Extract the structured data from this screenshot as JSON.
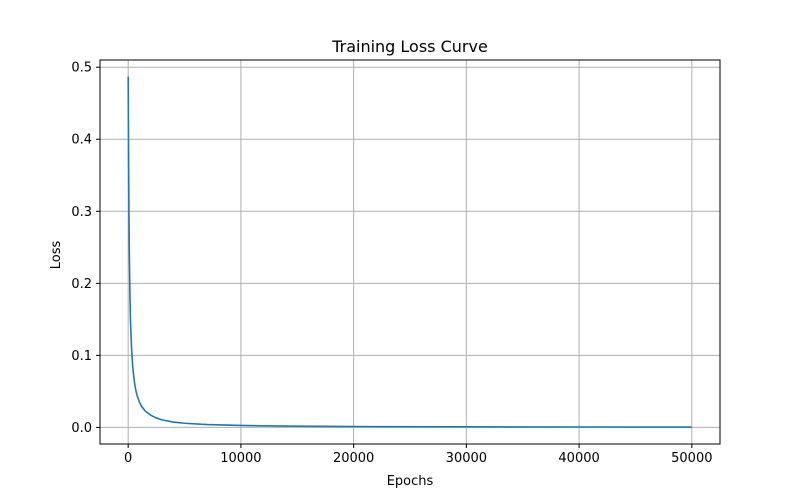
{
  "chart_data": {
    "type": "line",
    "title": "Training Loss Curve",
    "xlabel": "Epochs",
    "ylabel": "Loss",
    "xlim": [
      -2500,
      52500
    ],
    "ylim": [
      -0.023,
      0.51
    ],
    "grid": true,
    "legend": "none",
    "x_ticks": [
      0,
      10000,
      20000,
      30000,
      40000,
      50000
    ],
    "x_tick_labels": [
      "0",
      "10000",
      "20000",
      "30000",
      "40000",
      "50000"
    ],
    "y_ticks": [
      0.0,
      0.1,
      0.2,
      0.3,
      0.4,
      0.5
    ],
    "y_tick_labels": [
      "0.0",
      "0.1",
      "0.2",
      "0.3",
      "0.4",
      "0.5"
    ],
    "series": [
      {
        "color": "#1f77b4",
        "x": [
          0,
          50,
          100,
          150,
          200,
          300,
          400,
          500,
          600,
          700,
          800,
          1000,
          1200,
          1500,
          2000,
          2500,
          3000,
          4000,
          5000,
          7000,
          10000,
          15000,
          20000,
          30000,
          40000,
          50000
        ],
        "y": [
          0.487,
          0.33,
          0.245,
          0.19,
          0.15,
          0.11,
          0.085,
          0.07,
          0.058,
          0.05,
          0.044,
          0.035,
          0.029,
          0.023,
          0.017,
          0.013,
          0.0105,
          0.0075,
          0.0058,
          0.004,
          0.0027,
          0.0017,
          0.0012,
          0.0008,
          0.0006,
          0.0005
        ]
      }
    ]
  },
  "colors": {
    "grid": "#b0b0b0",
    "axes": "#000000",
    "line": "#1f77b4",
    "background": "#ffffff"
  }
}
